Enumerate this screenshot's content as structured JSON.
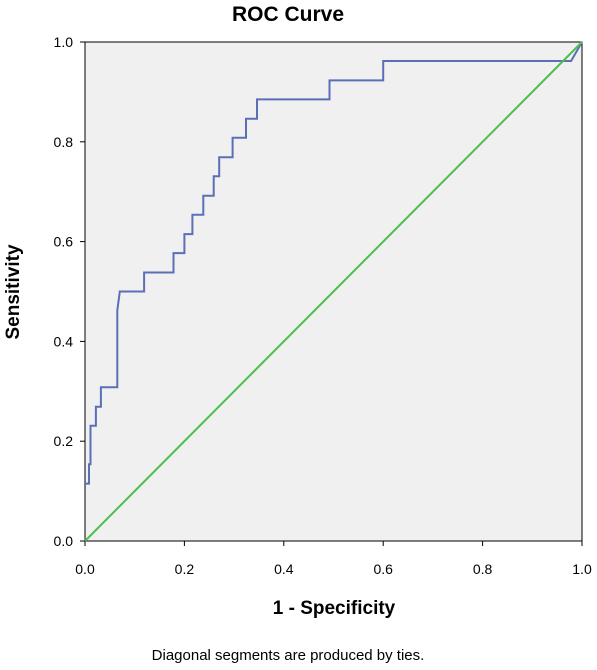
{
  "chart_data": {
    "type": "line",
    "title": "ROC Curve",
    "xlabel": "1 - Specificity",
    "ylabel": "Sensitivity",
    "xlim": [
      0,
      1
    ],
    "ylim": [
      0,
      1
    ],
    "x_ticks": [
      "0.0",
      "0.2",
      "0.4",
      "0.6",
      "0.8",
      "1.0"
    ],
    "y_ticks": [
      "0.0",
      "0.2",
      "0.4",
      "0.6",
      "0.8",
      "1.0"
    ],
    "grid": false,
    "footnote": "Diagonal segments are produced by ties.",
    "background_color": "#f0f0f0",
    "series": [
      {
        "color": "#5a6fb8",
        "x": [
          0,
          0.008,
          0.008,
          0.011,
          0.011,
          0.022,
          0.022,
          0.032,
          0.032,
          0.065,
          0.065,
          0.07,
          0.119,
          0.119,
          0.178,
          0.178,
          0.2,
          0.2,
          0.216,
          0.216,
          0.238,
          0.238,
          0.259,
          0.259,
          0.27,
          0.27,
          0.297,
          0.297,
          0.324,
          0.324,
          0.346,
          0.346,
          0.492,
          0.492,
          0.6,
          0.6,
          0.768,
          0.768,
          0.978,
          1.0
        ],
        "y": [
          0.115,
          0.115,
          0.154,
          0.154,
          0.231,
          0.231,
          0.269,
          0.269,
          0.308,
          0.308,
          0.462,
          0.5,
          0.5,
          0.538,
          0.538,
          0.577,
          0.577,
          0.615,
          0.615,
          0.654,
          0.654,
          0.692,
          0.692,
          0.731,
          0.731,
          0.769,
          0.769,
          0.808,
          0.808,
          0.846,
          0.846,
          0.885,
          0.885,
          0.923,
          0.923,
          0.962,
          0.962,
          0.962,
          0.962,
          1.0
        ]
      },
      {
        "color": "#4cbf4c",
        "x": [
          0,
          1
        ],
        "y": [
          0,
          1
        ]
      }
    ]
  }
}
